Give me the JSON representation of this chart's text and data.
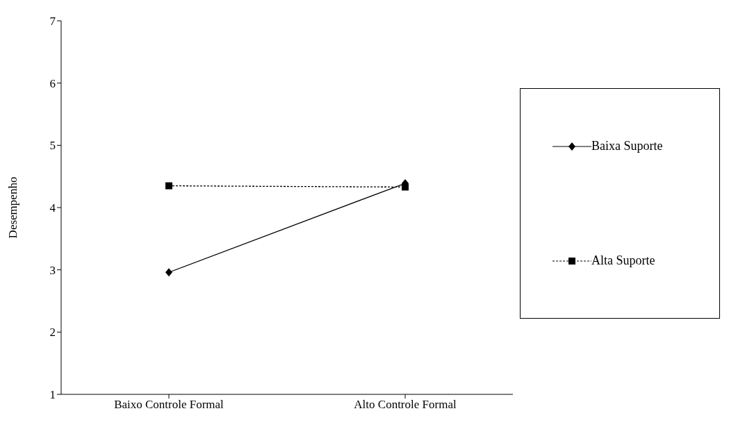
{
  "chart_data": {
    "type": "line",
    "ylabel": "Desempenho",
    "categories": [
      "Baixo Controle Formal",
      "Alto Controle Formal"
    ],
    "series": [
      {
        "name": "Baixa Suporte",
        "color": "#000000",
        "values": [
          2.96,
          4.39
        ],
        "marker": "diamond",
        "line_style": "solid"
      },
      {
        "name": "Alta Suporte",
        "color": "#000000",
        "values": [
          4.35,
          4.33
        ],
        "marker": "square",
        "line_style": "dashed"
      }
    ],
    "ylim": [
      1,
      7
    ],
    "yticks": [
      1,
      2,
      3,
      4,
      5,
      6,
      7
    ],
    "grid": false,
    "legend": "right"
  }
}
